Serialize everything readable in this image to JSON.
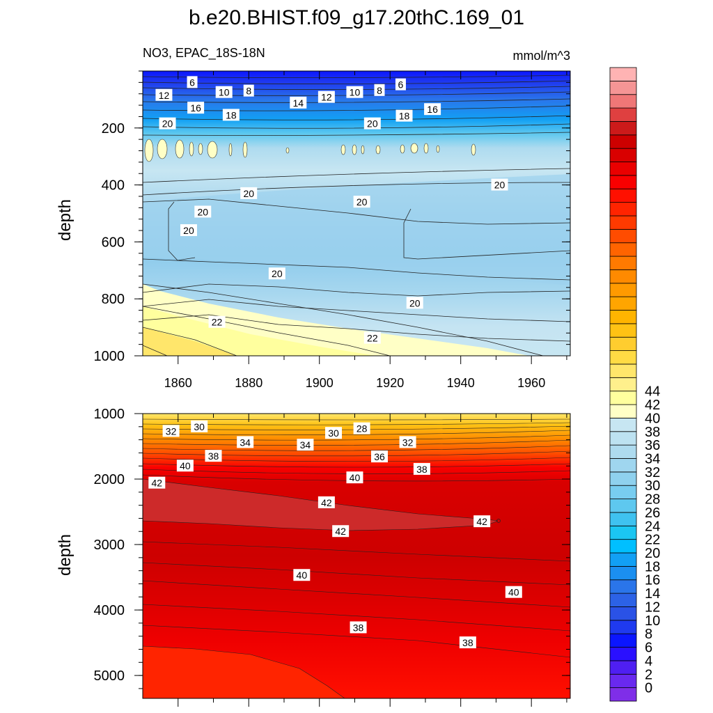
{
  "title": "b.e20.BHIST.f09_g17.20thC.169_01",
  "subtitle_left": "NO3, EPAC_18S-18N",
  "subtitle_right": "mmol/m^3",
  "chart_data": [
    {
      "type": "contour",
      "panel": "upper",
      "ylabel": "depth",
      "xlim": [
        1850,
        1971
      ],
      "ylim": [
        0,
        1000
      ],
      "y_reversed": true,
      "x_ticks": [
        "1860",
        "1880",
        "1900",
        "1920",
        "1940",
        "1960"
      ],
      "y_ticks": [
        "200",
        "400",
        "600",
        "800",
        "1000"
      ],
      "contour_labels": [
        {
          "text": "6",
          "x": 1864,
          "y": 40
        },
        {
          "text": "12",
          "x": 1856,
          "y": 85
        },
        {
          "text": "10",
          "x": 1873,
          "y": 75
        },
        {
          "text": "8",
          "x": 1880,
          "y": 70
        },
        {
          "text": "16",
          "x": 1865,
          "y": 130
        },
        {
          "text": "14",
          "x": 1894,
          "y": 112
        },
        {
          "text": "12",
          "x": 1902,
          "y": 92
        },
        {
          "text": "10",
          "x": 1910,
          "y": 75
        },
        {
          "text": "8",
          "x": 1917,
          "y": 68
        },
        {
          "text": "6",
          "x": 1923,
          "y": 48
        },
        {
          "text": "18",
          "x": 1875,
          "y": 155
        },
        {
          "text": "20",
          "x": 1857,
          "y": 185
        },
        {
          "text": "20",
          "x": 1915,
          "y": 185
        },
        {
          "text": "18",
          "x": 1924,
          "y": 158
        },
        {
          "text": "16",
          "x": 1932,
          "y": 135
        },
        {
          "text": "20",
          "x": 1880,
          "y": 430
        },
        {
          "text": "20",
          "x": 1912,
          "y": 460
        },
        {
          "text": "20",
          "x": 1951,
          "y": 400
        },
        {
          "text": "20",
          "x": 1867,
          "y": 495
        },
        {
          "text": "20",
          "x": 1863,
          "y": 560
        },
        {
          "text": "20",
          "x": 1888,
          "y": 712
        },
        {
          "text": "20",
          "x": 1927,
          "y": 815
        },
        {
          "text": "22",
          "x": 1871,
          "y": 882
        },
        {
          "text": "22",
          "x": 1915,
          "y": 938
        }
      ]
    },
    {
      "type": "contour",
      "panel": "lower",
      "ylabel": "depth",
      "xlim": [
        1850,
        1971
      ],
      "ylim": [
        1000,
        5350
      ],
      "y_reversed": true,
      "y_ticks": [
        "1000",
        "2000",
        "3000",
        "4000",
        "5000"
      ],
      "contour_labels": [
        {
          "text": "32",
          "x": 1858,
          "y": 1270
        },
        {
          "text": "30",
          "x": 1866,
          "y": 1200
        },
        {
          "text": "34",
          "x": 1879,
          "y": 1440
        },
        {
          "text": "34",
          "x": 1896,
          "y": 1480
        },
        {
          "text": "30",
          "x": 1904,
          "y": 1300
        },
        {
          "text": "28",
          "x": 1912,
          "y": 1230
        },
        {
          "text": "32",
          "x": 1925,
          "y": 1440
        },
        {
          "text": "38",
          "x": 1870,
          "y": 1650
        },
        {
          "text": "36",
          "x": 1917,
          "y": 1660
        },
        {
          "text": "38",
          "x": 1929,
          "y": 1850
        },
        {
          "text": "40",
          "x": 1862,
          "y": 1800
        },
        {
          "text": "40",
          "x": 1910,
          "y": 1980
        },
        {
          "text": "42",
          "x": 1854,
          "y": 2060
        },
        {
          "text": "42",
          "x": 1902,
          "y": 2360
        },
        {
          "text": "42",
          "x": 1946,
          "y": 2650
        },
        {
          "text": "42",
          "x": 1906,
          "y": 2800
        },
        {
          "text": "40",
          "x": 1895,
          "y": 3470
        },
        {
          "text": "40",
          "x": 1955,
          "y": 3730
        },
        {
          "text": "38",
          "x": 1911,
          "y": 4270
        },
        {
          "text": "38",
          "x": 1942,
          "y": 4500
        }
      ]
    }
  ],
  "colorbar": {
    "labels": [
      "0",
      "2",
      "4",
      "6",
      "8",
      "10",
      "12",
      "14",
      "16",
      "18",
      "20",
      "22",
      "24",
      "26",
      "28",
      "30",
      "32",
      "34",
      "36",
      "38",
      "40",
      "42",
      "44"
    ],
    "colors": [
      "#7f2ee8",
      "#6929ef",
      "#4f1ff2",
      "#2a10ff",
      "#0b16ff",
      "#1f3aef",
      "#2a52e6",
      "#2c62e6",
      "#2a75ea",
      "#1b8ff0",
      "#12a0f4",
      "#00bfff",
      "#1bc6f2",
      "#3fc2f0",
      "#5ec8ef",
      "#78cdf0",
      "#8fd1ee",
      "#9fd6ef",
      "#aedbef",
      "#bde2f1",
      "#c7e6f2",
      "#ffffc6",
      "#ffff9e",
      "#fff08c",
      "#ffe66b",
      "#ffdb44",
      "#ffcd2f",
      "#ffc214",
      "#ffb400",
      "#ffa500",
      "#ff9a00",
      "#ff8a00",
      "#ff7a00",
      "#ff6400",
      "#ff4c00",
      "#ff3a00",
      "#ff2400",
      "#ff1000",
      "#f90000",
      "#ea0000",
      "#d90000",
      "#cd0000",
      "#cc1a1a",
      "#df4040",
      "#ef7777",
      "#f59595",
      "#ffb3b3"
    ]
  }
}
